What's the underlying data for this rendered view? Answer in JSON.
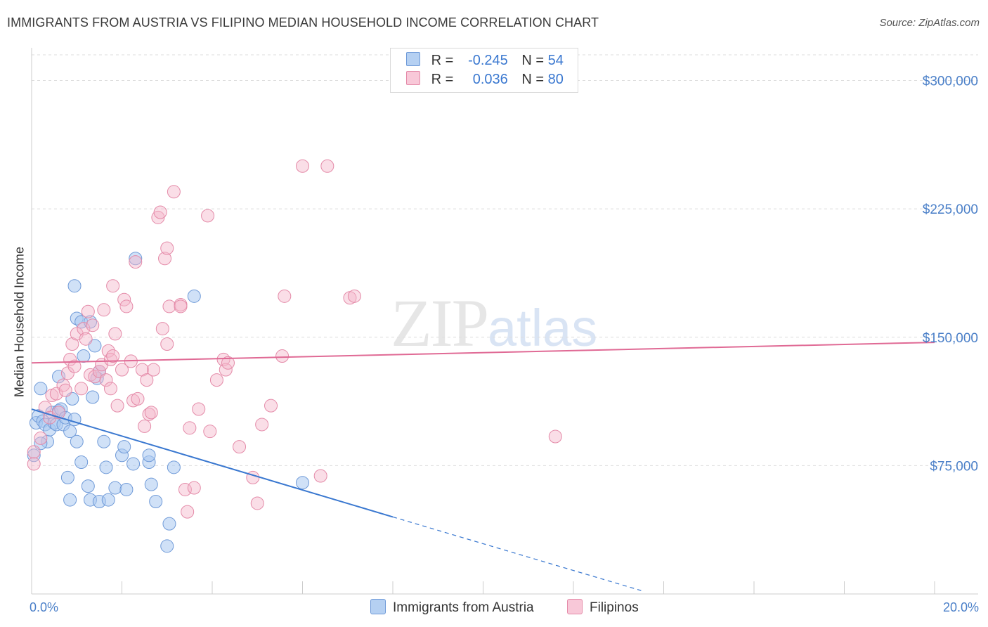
{
  "header": {
    "title": "IMMIGRANTS FROM AUSTRIA VS FILIPINO MEDIAN HOUSEHOLD INCOME CORRELATION CHART",
    "source": "Source: ZipAtlas.com"
  },
  "watermark": {
    "zip": "ZIP",
    "atlas": "atlas"
  },
  "legend": {
    "rows": [
      {
        "r_label": "R =",
        "r_value": "-0.245",
        "n_label": "N =",
        "n_value": "54"
      },
      {
        "r_label": "R =",
        "r_value": "0.036",
        "n_label": "N =",
        "n_value": "80"
      }
    ]
  },
  "colors": {
    "blue": "#4a86d8",
    "blue_fill": "#a9c8f0",
    "pink": "#e86b96",
    "pink_fill": "#f4b6ca",
    "axis_label": "#4a7fc8",
    "grid": "#dddddd"
  },
  "chart_data": {
    "type": "scatter",
    "title": "IMMIGRANTS FROM AUSTRIA VS FILIPINO MEDIAN HOUSEHOLD INCOME CORRELATION CHART",
    "xlabel": "",
    "ylabel": "Median Household Income",
    "xlim": [
      0,
      20
    ],
    "ylim": [
      0,
      315000
    ],
    "x_tick_labels": [
      "0.0%",
      "20.0%"
    ],
    "y_ticks": [
      75000,
      150000,
      225000,
      300000
    ],
    "y_tick_labels": [
      "$75,000",
      "$150,000",
      "$225,000",
      "$300,000"
    ],
    "legend_position": "bottom-center",
    "series": [
      {
        "name": "Immigrants from Austria",
        "r": -0.245,
        "n": 54,
        "trend": {
          "x0": 0,
          "y0": 108000,
          "x1": 8,
          "y1": 45000,
          "dash_to_x": 13.5,
          "dash_to_y": 2000
        },
        "points": [
          [
            0.1,
            100000
          ],
          [
            0.15,
            104000
          ],
          [
            0.2,
            120000
          ],
          [
            0.25,
            101000
          ],
          [
            0.3,
            99000
          ],
          [
            0.35,
            89000
          ],
          [
            0.4,
            96000
          ],
          [
            0.45,
            106000
          ],
          [
            0.5,
            100000
          ],
          [
            0.55,
            99000
          ],
          [
            0.6,
            127000
          ],
          [
            0.6,
            107000
          ],
          [
            0.65,
            108000
          ],
          [
            0.7,
            99000
          ],
          [
            0.75,
            103000
          ],
          [
            0.8,
            68000
          ],
          [
            0.85,
            95000
          ],
          [
            0.85,
            55000
          ],
          [
            0.9,
            114000
          ],
          [
            0.95,
            102000
          ],
          [
            0.95,
            180000
          ],
          [
            1.0,
            161000
          ],
          [
            1.0,
            89000
          ],
          [
            1.1,
            159000
          ],
          [
            1.1,
            77000
          ],
          [
            1.15,
            139000
          ],
          [
            1.25,
            63000
          ],
          [
            1.3,
            159000
          ],
          [
            1.3,
            55000
          ],
          [
            1.35,
            115000
          ],
          [
            1.4,
            145000
          ],
          [
            1.45,
            126000
          ],
          [
            1.5,
            130000
          ],
          [
            1.5,
            54000
          ],
          [
            1.6,
            89000
          ],
          [
            1.65,
            74000
          ],
          [
            1.7,
            55000
          ],
          [
            1.85,
            62000
          ],
          [
            2.0,
            81000
          ],
          [
            2.05,
            86000
          ],
          [
            2.1,
            61000
          ],
          [
            2.25,
            76000
          ],
          [
            2.3,
            196000
          ],
          [
            2.6,
            77000
          ],
          [
            2.6,
            81000
          ],
          [
            2.65,
            64000
          ],
          [
            2.75,
            54000
          ],
          [
            3.0,
            28000
          ],
          [
            3.05,
            41000
          ],
          [
            3.15,
            74000
          ],
          [
            3.6,
            174000
          ],
          [
            6.0,
            65000
          ],
          [
            0.05,
            81000
          ],
          [
            0.2,
            88000
          ]
        ]
      },
      {
        "name": "Filipinos",
        "r": 0.036,
        "n": 80,
        "trend": {
          "x0": 0,
          "y0": 135000,
          "x1": 20,
          "y1": 147000
        },
        "points": [
          [
            0.05,
            83000
          ],
          [
            0.05,
            76000
          ],
          [
            0.2,
            91000
          ],
          [
            0.3,
            109000
          ],
          [
            0.4,
            103000
          ],
          [
            0.45,
            116000
          ],
          [
            0.55,
            117000
          ],
          [
            0.6,
            106000
          ],
          [
            0.7,
            122000
          ],
          [
            0.75,
            119000
          ],
          [
            0.8,
            129000
          ],
          [
            0.85,
            137000
          ],
          [
            0.9,
            146000
          ],
          [
            0.95,
            133000
          ],
          [
            1.0,
            152000
          ],
          [
            1.1,
            120000
          ],
          [
            1.15,
            155000
          ],
          [
            1.2,
            149000
          ],
          [
            1.25,
            165000
          ],
          [
            1.3,
            128000
          ],
          [
            1.35,
            157000
          ],
          [
            1.4,
            127000
          ],
          [
            1.5,
            130000
          ],
          [
            1.55,
            134000
          ],
          [
            1.6,
            166000
          ],
          [
            1.65,
            125000
          ],
          [
            1.7,
            142000
          ],
          [
            1.75,
            137000
          ],
          [
            1.75,
            120000
          ],
          [
            1.8,
            180000
          ],
          [
            1.8,
            139000
          ],
          [
            1.85,
            152000
          ],
          [
            1.9,
            110000
          ],
          [
            2.0,
            131000
          ],
          [
            2.05,
            172000
          ],
          [
            2.1,
            168000
          ],
          [
            2.2,
            136000
          ],
          [
            2.25,
            113000
          ],
          [
            2.3,
            194000
          ],
          [
            2.35,
            114000
          ],
          [
            2.45,
            131000
          ],
          [
            2.5,
            98000
          ],
          [
            2.55,
            125000
          ],
          [
            2.6,
            105000
          ],
          [
            2.65,
            106000
          ],
          [
            2.7,
            131000
          ],
          [
            2.8,
            220000
          ],
          [
            2.85,
            223000
          ],
          [
            2.9,
            155000
          ],
          [
            2.95,
            196000
          ],
          [
            3.0,
            202000
          ],
          [
            3.0,
            146000
          ],
          [
            3.05,
            168000
          ],
          [
            3.15,
            235000
          ],
          [
            3.3,
            169000
          ],
          [
            3.3,
            168000
          ],
          [
            3.4,
            61000
          ],
          [
            3.45,
            48000
          ],
          [
            3.5,
            97000
          ],
          [
            3.6,
            62000
          ],
          [
            3.7,
            108000
          ],
          [
            3.9,
            221000
          ],
          [
            3.95,
            95000
          ],
          [
            4.1,
            125000
          ],
          [
            4.25,
            137000
          ],
          [
            4.3,
            131000
          ],
          [
            4.35,
            135000
          ],
          [
            4.6,
            86000
          ],
          [
            4.9,
            68000
          ],
          [
            5.0,
            53000
          ],
          [
            5.1,
            99000
          ],
          [
            5.3,
            110000
          ],
          [
            5.55,
            139000
          ],
          [
            5.6,
            174000
          ],
          [
            6.0,
            250000
          ],
          [
            6.4,
            69000
          ],
          [
            6.55,
            250000
          ],
          [
            7.05,
            173000
          ],
          [
            7.15,
            174000
          ],
          [
            11.6,
            92000
          ]
        ]
      }
    ]
  }
}
